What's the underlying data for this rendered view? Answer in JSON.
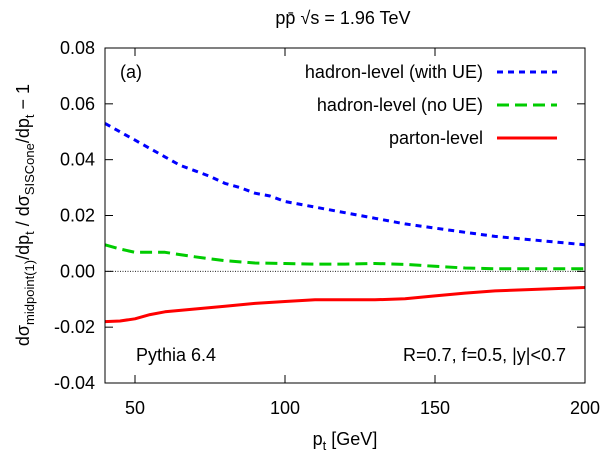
{
  "chart_data": {
    "type": "line",
    "title": "pp̄  √s = 1.96 TeV",
    "xlabel": {
      "base": "p",
      "sub": "t",
      "rest": " [GeV]"
    },
    "ylabel": {
      "p1": "dσ",
      "s1": "midpoint(1)",
      "p2": "/dp",
      "s2": "t",
      "p3": " / dσ",
      "s3": "SISCone",
      "p4": "/dp",
      "s4": "t",
      "p5": " − 1"
    },
    "xlim": [
      40,
      200
    ],
    "ylim": [
      -0.04,
      0.08
    ],
    "xticks": [
      50,
      100,
      150,
      200
    ],
    "xtick_labels": [
      "50",
      "100",
      "150",
      "200"
    ],
    "yticks": [
      -0.04,
      -0.02,
      0.0,
      0.02,
      0.04,
      0.06,
      0.08
    ],
    "ytick_labels": [
      "-0.04",
      "-0.02",
      "0.00",
      "0.02",
      "0.04",
      "0.06",
      "0.08"
    ],
    "grid": false,
    "legend_position": "top-right",
    "panel_label": "(a)",
    "annotations": {
      "generator": "Pythia 6.4",
      "params": "R=0.7, f=0.5, |y|<0.7"
    },
    "series": [
      {
        "name": "hadron-level (with UE)",
        "color": "#0000ff",
        "style": "dotted",
        "x": [
          40,
          45,
          50,
          55,
          60,
          65,
          70,
          75,
          80,
          85,
          90,
          95,
          100,
          110,
          120,
          130,
          140,
          150,
          160,
          170,
          180,
          190,
          200
        ],
        "y": [
          0.053,
          0.05,
          0.047,
          0.044,
          0.041,
          0.038,
          0.036,
          0.034,
          0.0315,
          0.03,
          0.028,
          0.027,
          0.025,
          0.023,
          0.021,
          0.019,
          0.017,
          0.0155,
          0.014,
          0.0125,
          0.0115,
          0.0105,
          0.0095
        ]
      },
      {
        "name": "hadron-level (no UE)",
        "color": "#00cc00",
        "style": "dashed",
        "x": [
          40,
          45,
          50,
          55,
          60,
          65,
          70,
          75,
          80,
          90,
          100,
          110,
          120,
          130,
          140,
          150,
          160,
          170,
          180,
          190,
          200
        ],
        "y": [
          0.0095,
          0.008,
          0.0068,
          0.0068,
          0.0068,
          0.006,
          0.0052,
          0.0045,
          0.0038,
          0.003,
          0.0028,
          0.0026,
          0.0026,
          0.0028,
          0.0025,
          0.0018,
          0.0012,
          0.0009,
          0.0009,
          0.0009,
          0.0009
        ]
      },
      {
        "name": "parton-level",
        "color": "#ff0000",
        "style": "solid",
        "x": [
          40,
          45,
          50,
          55,
          60,
          65,
          70,
          80,
          90,
          100,
          110,
          120,
          130,
          140,
          150,
          160,
          170,
          180,
          190,
          200
        ],
        "y": [
          -0.018,
          -0.0178,
          -0.017,
          -0.0155,
          -0.0145,
          -0.014,
          -0.0135,
          -0.0125,
          -0.0115,
          -0.0108,
          -0.0102,
          -0.0102,
          -0.0102,
          -0.0098,
          -0.0088,
          -0.0078,
          -0.007,
          -0.0066,
          -0.0062,
          -0.0058
        ]
      }
    ]
  }
}
